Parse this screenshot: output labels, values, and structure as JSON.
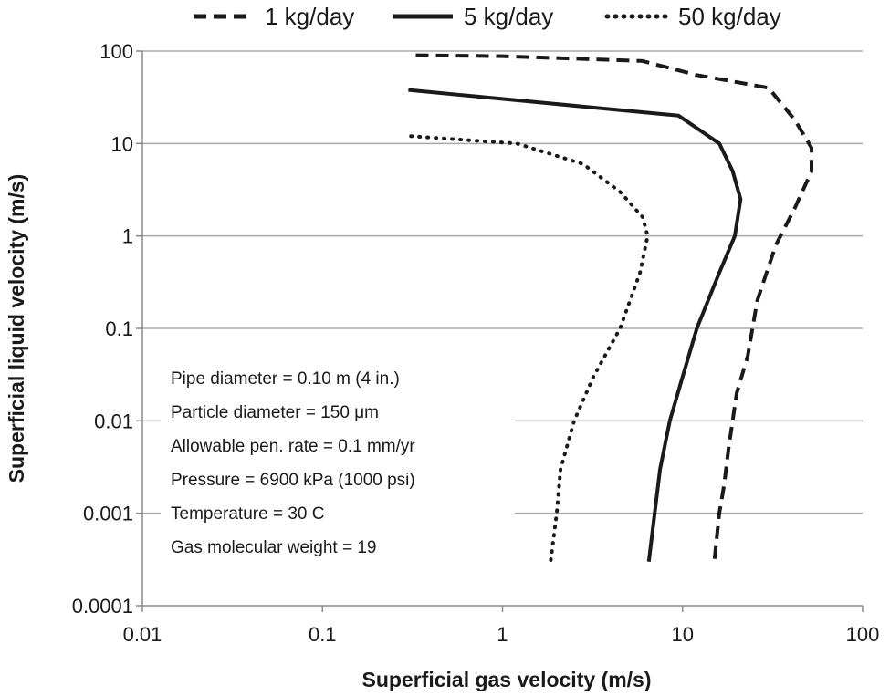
{
  "chart_data": {
    "type": "line",
    "title": "",
    "xlabel": "Superficial gas velocity (m/s)",
    "ylabel": "Superficial liquid velocity (m/s)",
    "x_scale": "log",
    "y_scale": "log",
    "xlim": [
      0.01,
      100
    ],
    "ylim": [
      0.0001,
      100
    ],
    "x_ticks": [
      "0.01",
      "0.1",
      "1",
      "10",
      "100"
    ],
    "y_ticks": [
      "0.0001",
      "0.001",
      "0.01",
      "0.1",
      "1",
      "10",
      "100"
    ],
    "grid": "horizontal",
    "legend_position": "top",
    "series": [
      {
        "name": "1 kg/day",
        "style": "dashed",
        "color": "#1a1a1a",
        "x": [
          0.33,
          1.0,
          6.0,
          12,
          30,
          42,
          52,
          52,
          42,
          33,
          26,
          23,
          20,
          18,
          17,
          16,
          15
        ],
        "y": [
          90,
          88,
          78,
          55,
          40,
          18,
          9,
          5,
          2,
          0.8,
          0.2,
          0.05,
          0.02,
          0.005,
          0.002,
          0.001,
          0.0003
        ]
      },
      {
        "name": "5 kg/day",
        "style": "solid",
        "color": "#1a1a1a",
        "x": [
          0.3,
          9.5,
          16,
          19,
          21,
          19.5,
          16,
          12,
          10,
          8.5,
          7.5,
          7,
          6.5
        ],
        "y": [
          38,
          20,
          10,
          5,
          2.5,
          1,
          0.4,
          0.1,
          0.03,
          0.01,
          0.003,
          0.001,
          0.0003
        ]
      },
      {
        "name": "50 kg/day",
        "style": "dotted",
        "color": "#1a1a1a",
        "x": [
          0.31,
          1.2,
          2.8,
          4.5,
          6.0,
          6.4,
          5.8,
          4.5,
          3.2,
          2.5,
          2.1,
          2.0,
          1.85
        ],
        "y": [
          12,
          10,
          6,
          3,
          1.6,
          1,
          0.4,
          0.1,
          0.03,
          0.01,
          0.003,
          0.001,
          0.0003
        ]
      }
    ],
    "annotations": [
      "Pipe diameter = 0.10 m (4 in.)",
      "Particle diameter = 150 μm",
      "Allowable pen. rate = 0.1 mm/yr",
      "Pressure = 6900 kPa (1000 psi)",
      "Temperature = 30 C",
      "Gas molecular weight = 19"
    ]
  },
  "colors": {
    "grid": "#a9a9a9",
    "line": "#1a1a1a",
    "background": "#ffffff"
  }
}
